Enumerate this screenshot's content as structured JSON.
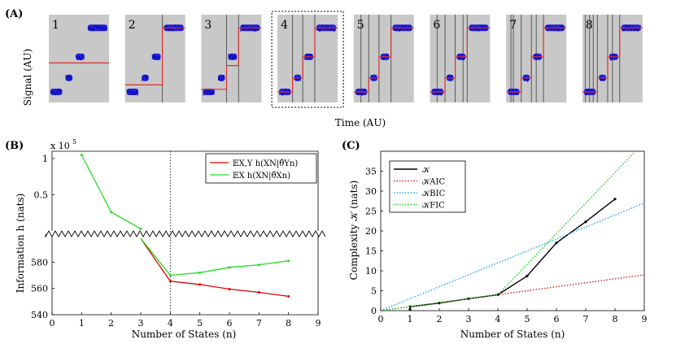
{
  "figure": {
    "panel_a_label": "(A)",
    "panel_b_label": "(B)",
    "panel_c_label": "(C)"
  },
  "chart_data": [
    {
      "type": "line",
      "panel": "A",
      "title": "",
      "xlabel": "Time (AU)",
      "ylabel": "Signal (AU)",
      "thumbnails": [
        {
          "label": "1",
          "fit_levels": [
            0.45
          ],
          "breakpoints": []
        },
        {
          "label": "2",
          "fit_levels": [
            0.2,
            0.85
          ],
          "breakpoints": [
            0.62
          ]
        },
        {
          "label": "3",
          "fit_levels": [
            0.15,
            0.42,
            0.85
          ],
          "breakpoints": [
            0.42,
            0.62
          ]
        },
        {
          "label": "4",
          "fit_levels": [
            0.12,
            0.28,
            0.52,
            0.85
          ],
          "breakpoints": [
            0.25,
            0.42,
            0.62
          ]
        },
        {
          "label": "5",
          "fit_levels": [
            0.12,
            0.28,
            0.52,
            0.85
          ],
          "breakpoints": [
            0.12,
            0.25,
            0.42,
            0.62
          ]
        },
        {
          "label": "6",
          "fit_levels": [
            0.12,
            0.28,
            0.52,
            0.85
          ],
          "breakpoints": [
            0.12,
            0.25,
            0.42,
            0.55,
            0.62
          ]
        },
        {
          "label": "7",
          "fit_levels": [
            0.12,
            0.28,
            0.52,
            0.85
          ],
          "breakpoints": [
            0.08,
            0.12,
            0.25,
            0.42,
            0.5,
            0.62
          ]
        },
        {
          "label": "8",
          "fit_levels": [
            0.12,
            0.28,
            0.52,
            0.85
          ],
          "breakpoints": [
            0.05,
            0.12,
            0.18,
            0.25,
            0.42,
            0.5,
            0.62
          ]
        }
      ],
      "highlighted": "4",
      "colors": {
        "data": "#1f1fd6",
        "fit": "#e03030",
        "background": "#c8c8c8",
        "breakpoint": "#5a5a5a"
      }
    },
    {
      "type": "line",
      "panel": "B",
      "title": "",
      "xlabel": "Number of States (n)",
      "ylabel": "Information  h  (nats)",
      "xlim": [
        0,
        9
      ],
      "xticks": [
        "0",
        "1",
        "2",
        "3",
        "4",
        "5",
        "6",
        "7",
        "8",
        "9"
      ],
      "upper_ylim": [
        0,
        110000
      ],
      "upper_yticks": [
        "0.5",
        "1"
      ],
      "upper_exponent_label": "x 10",
      "upper_exponent_power": "5",
      "lower_ylim": [
        540,
        600
      ],
      "lower_yticks": [
        "540",
        "560",
        "580"
      ],
      "vline_x": 4,
      "series": [
        {
          "name": "E_{X,Y} h(X^N | θ̂_Y^n)",
          "color": "#e00000",
          "x": [
            3,
            4,
            5,
            6,
            7,
            8
          ],
          "y": [
            598,
            565.5,
            563,
            559.5,
            557,
            554
          ],
          "upper_x": [],
          "upper_y": []
        },
        {
          "name": "E_X h(X^N | θ̂_X^n)",
          "color": "#22dd22",
          "x": [
            3,
            4,
            5,
            6,
            7,
            8
          ],
          "y": [
            598,
            570,
            572,
            576,
            578,
            581
          ],
          "upper_x": [
            1,
            2,
            3
          ],
          "upper_y": [
            105000,
            26000,
            3000
          ]
        }
      ],
      "legend_entries": [
        "𝔼X,Y h(XN|θ̂Yn)",
        "𝔼X h(XN|θ̂Xn)"
      ]
    },
    {
      "type": "line",
      "panel": "C",
      "title": "",
      "xlabel": "Number of States (n)",
      "ylabel": "Complexity 𝒦  (nats)",
      "xlim": [
        0,
        9
      ],
      "ylim": [
        0,
        40
      ],
      "xticks": [
        "0",
        "1",
        "2",
        "3",
        "4",
        "5",
        "6",
        "7",
        "8",
        "9"
      ],
      "yticks": [
        "0",
        "5",
        "10",
        "15",
        "20",
        "25",
        "30",
        "35"
      ],
      "series": [
        {
          "name": "𝒦",
          "color": "#000000",
          "style": "solid-markers",
          "x": [
            1,
            1,
            2,
            3,
            4,
            5,
            6,
            7,
            8
          ],
          "y": [
            0.3,
            1.0,
            1.9,
            3.0,
            4.0,
            8.7,
            17.0,
            22.3,
            28.0
          ]
        },
        {
          "name": "𝒦AIC",
          "color": "#e02020",
          "style": "dotted",
          "x": [
            0,
            1,
            2,
            3,
            4,
            5,
            6,
            7,
            8,
            9
          ],
          "y": [
            0,
            1,
            2,
            3,
            4,
            5,
            6,
            7,
            8,
            9
          ]
        },
        {
          "name": "𝒦BIC",
          "color": "#1aa8e0",
          "style": "dotted",
          "x": [
            0,
            9
          ],
          "y": [
            0,
            27
          ]
        },
        {
          "name": "𝒦FIC",
          "color": "#22cc22",
          "style": "dotted",
          "x": [
            0,
            4,
            8.7
          ],
          "y": [
            0,
            4,
            40
          ]
        }
      ],
      "legend_entries": [
        "𝒦",
        "𝒦AIC",
        "𝒦BIC",
        "𝒦FIC"
      ]
    }
  ]
}
